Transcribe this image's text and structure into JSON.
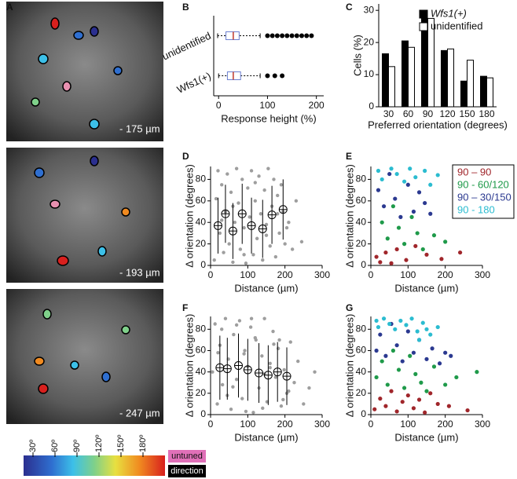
{
  "panel_labels": [
    "A",
    "B",
    "C",
    "D",
    "E",
    "F",
    "G"
  ],
  "images": [
    {
      "depth": "- 175 µm"
    },
    {
      "depth": "- 193 µm"
    },
    {
      "depth": "- 247 µm"
    }
  ],
  "colorbar": {
    "labels": [
      "30º",
      "60º",
      "90º",
      "120º",
      "150º",
      "180º"
    ],
    "untuned": "untuned",
    "direction": "direction"
  },
  "chart_data": [
    {
      "type": "box",
      "xlabel": "Response height (%)",
      "categories": [
        "unidentified",
        "Wfs1(+)"
      ],
      "boxes": [
        {
          "min": -2,
          "q1": 15,
          "median": 30,
          "q3": 42,
          "max": 85,
          "outliers": [
            100,
            110,
            120,
            130,
            140,
            150,
            160,
            170,
            180,
            190
          ]
        },
        {
          "min": 0,
          "q1": 18,
          "median": 30,
          "q3": 45,
          "max": 85,
          "outliers": [
            100,
            115,
            130
          ]
        }
      ],
      "xlim": [
        -10,
        215
      ],
      "xticks": [
        0,
        100,
        200
      ],
      "box_color": "#6a7fd0",
      "median_color": "#c0392b"
    },
    {
      "type": "bar",
      "xlabel": "Preferred orientation (degrees)",
      "ylabel": "Cells (%)",
      "categories": [
        "30",
        "60",
        "90",
        "120",
        "150",
        "180"
      ],
      "series": [
        {
          "name": "Wfs1(+)",
          "color": "#000000",
          "values": [
            16.5,
            20.5,
            27.5,
            17.5,
            8,
            9.5
          ]
        },
        {
          "name": "unidentified",
          "color": "#ffffff",
          "values": [
            12.5,
            18.5,
            27.5,
            18,
            14.5,
            9
          ]
        }
      ],
      "ylim": [
        0,
        32
      ],
      "yticks": [
        0,
        10,
        20,
        30
      ]
    },
    {
      "type": "scatter_mean",
      "xlabel": "Distance (µm)",
      "ylabel": "Δ orientation (degrees)",
      "points": {
        "color": "#9e9e9e",
        "x": [
          10,
          15,
          20,
          25,
          30,
          35,
          40,
          45,
          50,
          55,
          60,
          65,
          70,
          75,
          80,
          85,
          90,
          95,
          100,
          105,
          110,
          115,
          120,
          125,
          130,
          135,
          140,
          145,
          150,
          155,
          160,
          165,
          170,
          175,
          180,
          185,
          190,
          195,
          200,
          210,
          220,
          230,
          245,
          30,
          60,
          90,
          120,
          150,
          180,
          205
        ],
        "values": [
          5,
          62,
          88,
          30,
          75,
          12,
          50,
          85,
          20,
          68,
          3,
          40,
          90,
          58,
          15,
          80,
          35,
          2,
          72,
          45,
          88,
          10,
          60,
          25,
          83,
          48,
          5,
          70,
          38,
          90,
          18,
          55,
          80,
          8,
          65,
          30,
          75,
          50,
          20,
          40,
          15,
          60,
          22,
          42,
          55,
          10,
          77,
          28,
          48,
          35
        ]
      },
      "means": {
        "x": [
          20,
          40,
          60,
          85,
          110,
          140,
          165,
          195
        ],
        "values": [
          37,
          48,
          32,
          48,
          37,
          34,
          47,
          52
        ],
        "errors": [
          26,
          27,
          26,
          28,
          26,
          27,
          27,
          28
        ]
      },
      "xlim": [
        0,
        300
      ],
      "xticks": [
        0,
        100,
        200,
        300
      ],
      "ylim": [
        0,
        92
      ],
      "yticks": [
        0,
        20,
        40,
        60,
        80
      ]
    },
    {
      "type": "scatter",
      "xlabel": "Distance (µm)",
      "ylabel": "Δ orientation (degrees)",
      "legend": "upper right",
      "series": [
        {
          "name": "90 – 90",
          "color": "#a0262b",
          "x": [
            15,
            25,
            40,
            55,
            70,
            95,
            120,
            150,
            190,
            240
          ],
          "values": [
            8,
            3,
            12,
            2,
            15,
            5,
            18,
            10,
            6,
            12
          ]
        },
        {
          "name": "90 - 60/120",
          "color": "#1f9a4a",
          "x": [
            30,
            45,
            60,
            75,
            90,
            110,
            125,
            140,
            170,
            200
          ],
          "values": [
            40,
            25,
            55,
            35,
            20,
            45,
            30,
            15,
            28,
            22
          ]
        },
        {
          "name": "90 – 30/150",
          "color": "#2b3990",
          "x": [
            20,
            35,
            50,
            65,
            80,
            100,
            115,
            130,
            145,
            160
          ],
          "values": [
            70,
            55,
            85,
            62,
            45,
            75,
            50,
            68,
            58,
            48
          ]
        },
        {
          "name": "90 - 180",
          "color": "#2bbcd0",
          "x": [
            20,
            30,
            55,
            70,
            90,
            105,
            120,
            145,
            160,
            180
          ],
          "values": [
            88,
            80,
            90,
            85,
            78,
            90,
            82,
            88,
            75,
            84
          ]
        }
      ],
      "xlim": [
        0,
        300
      ],
      "xticks": [
        0,
        100,
        200,
        300
      ],
      "ylim": [
        0,
        92
      ],
      "yticks": [
        0,
        20,
        40,
        60,
        80
      ]
    },
    {
      "type": "scatter_mean",
      "xlabel": "Distance (µm)",
      "ylabel": "Δ orientation (degrees)",
      "points": {
        "color": "#9e9e9e",
        "x": [
          5,
          12,
          18,
          25,
          32,
          40,
          48,
          55,
          62,
          70,
          78,
          85,
          92,
          100,
          108,
          115,
          122,
          130,
          138,
          145,
          152,
          160,
          168,
          175,
          182,
          190,
          198,
          205,
          215,
          225,
          235,
          250,
          265,
          280,
          20,
          45,
          70,
          95,
          120,
          145,
          170,
          195,
          30,
          60,
          90,
          110,
          140,
          160,
          185,
          210
        ],
        "values": [
          40,
          85,
          10,
          65,
          28,
          90,
          52,
          5,
          75,
          33,
          88,
          15,
          60,
          45,
          82,
          2,
          70,
          25,
          55,
          90,
          12,
          48,
          78,
          35,
          62,
          8,
          42,
          20,
          68,
          30,
          50,
          10,
          25,
          40,
          58,
          18,
          84,
          3,
          72,
          38,
          66,
          14,
          80,
          26,
          57,
          90,
          6,
          44,
          70,
          22
        ]
      },
      "means": {
        "x": [
          25,
          45,
          75,
          100,
          130,
          155,
          180,
          205
        ],
        "values": [
          44,
          43,
          46,
          42,
          39,
          37,
          40,
          36
        ],
        "errors": [
          30,
          29,
          30,
          29,
          28,
          28,
          28,
          27
        ]
      },
      "xlim": [
        0,
        300
      ],
      "xticks": [
        0,
        100,
        200,
        300
      ],
      "ylim": [
        0,
        92
      ],
      "yticks": [
        0,
        20,
        40,
        60,
        80
      ]
    },
    {
      "type": "scatter",
      "xlabel": "Distance (µm)",
      "ylabel": "Δ orientation (degrees)",
      "series": [
        {
          "color": "#a0262b",
          "x": [
            10,
            25,
            40,
            55,
            70,
            85,
            100,
            115,
            130,
            145,
            160,
            180,
            210,
            260
          ],
          "values": [
            5,
            15,
            8,
            22,
            3,
            12,
            18,
            6,
            14,
            2,
            20,
            10,
            8,
            4
          ]
        },
        {
          "color": "#1f9a4a",
          "x": [
            15,
            30,
            45,
            60,
            75,
            90,
            105,
            120,
            135,
            150,
            170,
            200,
            230,
            285
          ],
          "values": [
            35,
            50,
            28,
            60,
            42,
            25,
            55,
            38,
            30,
            22,
            45,
            28,
            35,
            40
          ]
        },
        {
          "color": "#2b3990",
          "x": [
            15,
            25,
            40,
            55,
            70,
            85,
            100,
            115,
            130,
            150,
            165,
            185,
            200,
            215
          ],
          "values": [
            60,
            75,
            55,
            85,
            65,
            50,
            78,
            58,
            70,
            52,
            62,
            48,
            58,
            55
          ]
        },
        {
          "color": "#2bbcd0",
          "x": [
            15,
            20,
            35,
            50,
            65,
            80,
            95,
            110,
            125,
            140,
            150,
            160,
            180,
            130
          ],
          "values": [
            88,
            82,
            90,
            85,
            80,
            88,
            84,
            90,
            78,
            86,
            80,
            75,
            82,
            70
          ]
        }
      ],
      "xlim": [
        0,
        300
      ],
      "xticks": [
        0,
        100,
        200,
        300
      ],
      "ylim": [
        0,
        92
      ],
      "yticks": [
        0,
        20,
        40,
        60,
        80
      ]
    }
  ]
}
